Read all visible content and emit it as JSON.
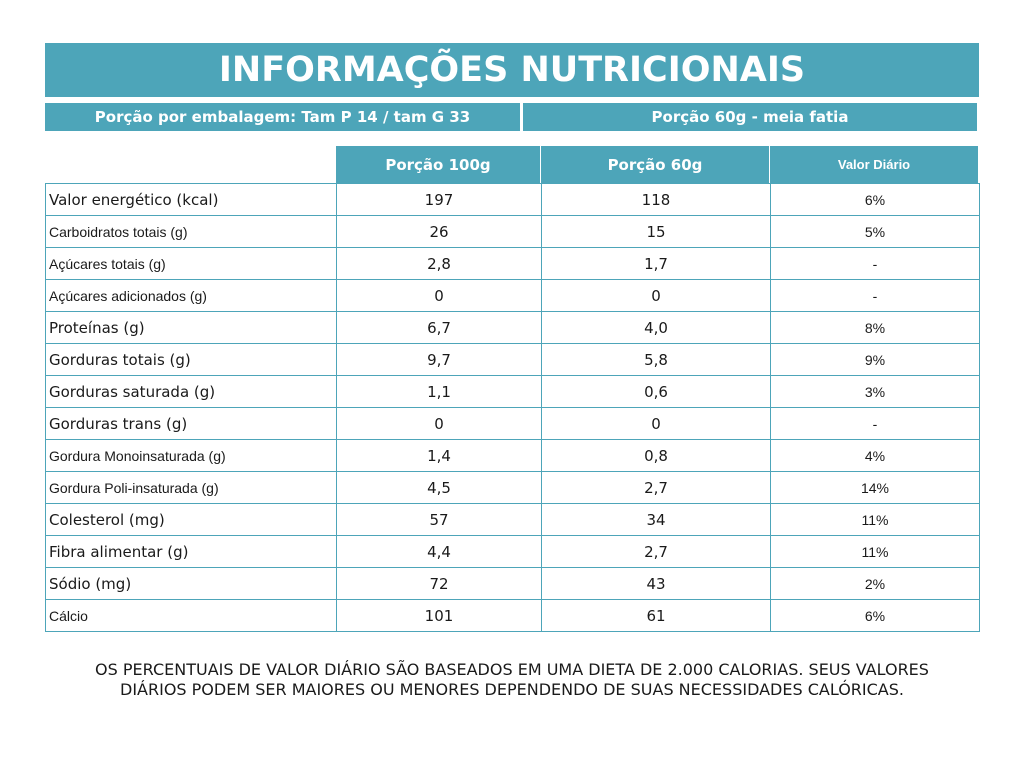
{
  "header": {
    "title": "INFORMAÇÕES NUTRICIONAIS"
  },
  "serving": {
    "left": "Porção por embalagem:  Tam P 14 / tam G 33",
    "right": "Porção 60g - meia fatia"
  },
  "table": {
    "columns": [
      "Porção 100g",
      "Porção 60g",
      "Valor Diário"
    ],
    "rows": [
      [
        "Valor energético (kcal)",
        "197",
        "118",
        "6%"
      ],
      [
        "Carboidratos totais (g)",
        "26",
        "15",
        "5%"
      ],
      [
        "Açúcares totais (g)",
        "2,8",
        "1,7",
        "-"
      ],
      [
        "Açúcares adicionados (g)",
        "0",
        "0",
        "-"
      ],
      [
        "Proteínas (g)",
        "6,7",
        "4,0",
        "8%"
      ],
      [
        "Gorduras totais (g)",
        "9,7",
        "5,8",
        "9%"
      ],
      [
        "Gorduras saturada (g)",
        "1,1",
        "0,6",
        "3%"
      ],
      [
        "Gorduras trans (g)",
        "0",
        "0",
        "-"
      ],
      [
        "Gordura Monoinsaturada (g)",
        "1,4",
        "0,8",
        "4%"
      ],
      [
        "Gordura Poli-insaturada (g)",
        "4,5",
        "2,7",
        "14%"
      ],
      [
        "Colesterol (mg)",
        "57",
        "34",
        "11%"
      ],
      [
        "Fibra alimentar (g)",
        "4,4",
        "2,7",
        "11%"
      ],
      [
        "Sódio (mg)",
        "72",
        "43",
        "2%"
      ],
      [
        "Cálcio",
        "101",
        "61",
        "6%"
      ]
    ]
  },
  "footer": {
    "note": "OS PERCENTUAIS DE VALOR DIÁRIO SÃO BASEADOS EM UMA DIETA DE 2.000 CALORIAS. SEUS VALORES DIÁRIOS PODEM SER MAIORES OU MENORES DEPENDENDO DE SUAS NECESSIDADES CALÓRICAS."
  }
}
